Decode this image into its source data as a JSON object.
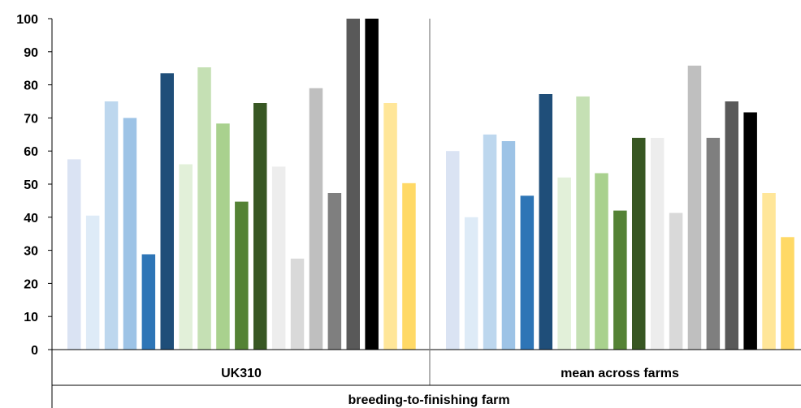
{
  "chart_data": {
    "type": "bar",
    "ylim": [
      0,
      100
    ],
    "yticks": [
      "0",
      "10",
      "20",
      "30",
      "40",
      "50",
      "60",
      "70",
      "80",
      "90",
      "100"
    ],
    "group_label": "breeding-to-finishing farm",
    "categories": [
      "UK310",
      "mean across farms"
    ],
    "bar_colors": [
      "#dae3f3",
      "#deebf7",
      "#bdd7ee",
      "#9dc3e6",
      "#2e75b6",
      "#1f4e79",
      "#e2f0d9",
      "#c5e0b4",
      "#a9d18e",
      "#548235",
      "#385723",
      "#ededed",
      "#d9d9d9",
      "#bfbfbf",
      "#7f7f7f",
      "#595959",
      "#000000",
      "#ffe699",
      "#ffd966"
    ],
    "groups": [
      {
        "category": "UK310",
        "values": [
          57.5,
          40.5,
          75,
          70,
          28.8,
          83.5,
          56,
          85.3,
          68.3,
          44.7,
          74.5,
          55.3,
          27.5,
          79,
          47.3,
          100,
          100,
          74.5,
          50.3
        ]
      },
      {
        "category": "mean across farms",
        "values": [
          60,
          40,
          65,
          63,
          46.5,
          77.2,
          52,
          76.5,
          53.3,
          42,
          64,
          64,
          41.3,
          85.8,
          64,
          75,
          71.7,
          47.3,
          34
        ]
      }
    ]
  }
}
